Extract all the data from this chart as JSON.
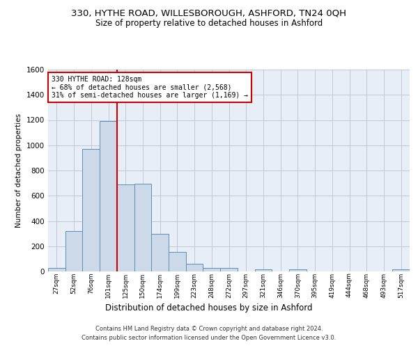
{
  "title": "330, HYTHE ROAD, WILLESBOROUGH, ASHFORD, TN24 0QH",
  "subtitle": "Size of property relative to detached houses in Ashford",
  "xlabel": "Distribution of detached houses by size in Ashford",
  "ylabel": "Number of detached properties",
  "categories": [
    "27sqm",
    "52sqm",
    "76sqm",
    "101sqm",
    "125sqm",
    "150sqm",
    "174sqm",
    "199sqm",
    "223sqm",
    "248sqm",
    "272sqm",
    "297sqm",
    "321sqm",
    "346sqm",
    "370sqm",
    "395sqm",
    "419sqm",
    "444sqm",
    "468sqm",
    "493sqm",
    "517sqm"
  ],
  "values": [
    30,
    320,
    970,
    1190,
    690,
    695,
    300,
    155,
    60,
    30,
    25,
    0,
    15,
    0,
    15,
    0,
    0,
    0,
    0,
    0,
    15
  ],
  "bar_color": "#ccd9e8",
  "bar_edge_color": "#5b8db8",
  "grid_color": "#c0c8d8",
  "bg_color": "#e8eef5",
  "property_line_index": 4,
  "annotation_text": "330 HYTHE ROAD: 128sqm\n← 68% of detached houses are smaller (2,568)\n31% of semi-detached houses are larger (1,169) →",
  "annotation_box_color": "#ffffff",
  "annotation_box_edge": "#cc0000",
  "property_line_color": "#cc0000",
  "ylim": [
    0,
    1600
  ],
  "yticks": [
    0,
    200,
    400,
    600,
    800,
    1000,
    1200,
    1400,
    1600
  ],
  "footer1": "Contains HM Land Registry data © Crown copyright and database right 2024.",
  "footer2": "Contains public sector information licensed under the Open Government Licence v3.0."
}
